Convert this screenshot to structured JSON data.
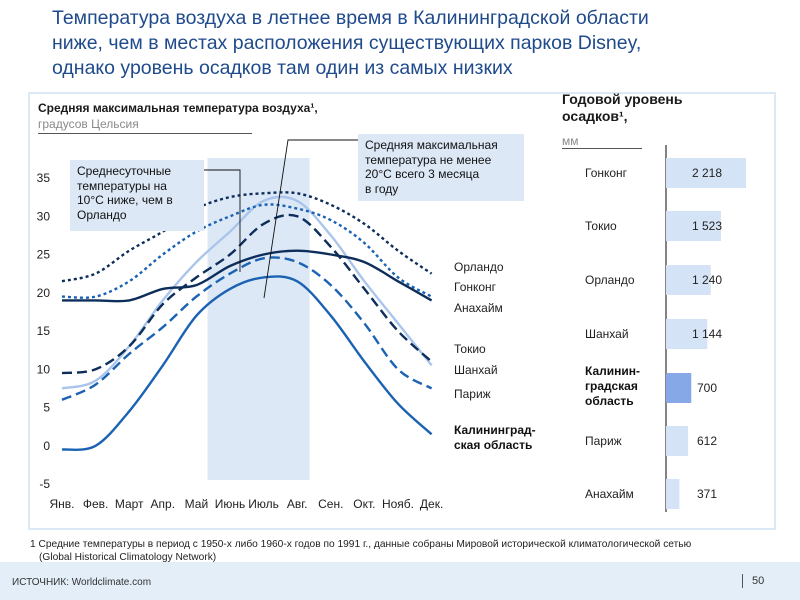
{
  "title_lines": [
    "Температура воздуха в летнее время в Калининградской области",
    "ниже, чем в местах расположения существующих парков Disney,",
    "однако уровень осадков там один из самых низких"
  ],
  "colors": {
    "title": "#1f4a8c",
    "navy": "#0d2d5a",
    "mid_blue": "#1b62b3",
    "light_blue": "#7fb0e6",
    "pale_blue": "#a9c5ec",
    "highlight_band": "#dde8f6",
    "bar_fill": "#d4e3f6",
    "bar_highlight": "#86a8e6"
  },
  "callouts": {
    "left_lines": [
      "Среднесуточные",
      "температуры на",
      "10°С ниже, чем в",
      "Орландо"
    ],
    "right_lines": [
      "Средняя максимальная",
      "температура не менее",
      "20°С всего 3 месяца",
      "в году"
    ]
  },
  "chart_data": [
    {
      "type": "line",
      "title": "Средняя максимальная температура воздуха¹,",
      "subtitle": "градусов Цельсия",
      "xlabel": "",
      "ylabel": "",
      "categories": [
        "Янв.",
        "Фев.",
        "Март",
        "Апр.",
        "Май",
        "Июнь",
        "Июль",
        "Авг.",
        "Сен.",
        "Окт.",
        "Нояб.",
        "Дек."
      ],
      "yticks": [
        "35",
        "30",
        "25",
        "20",
        "15",
        "10",
        "5",
        "0",
        "-5"
      ],
      "ytick_values": [
        35,
        30,
        25,
        20,
        15,
        10,
        5,
        0,
        -5
      ],
      "ylim": [
        -5,
        35
      ],
      "grid": false,
      "highlight_months": [
        "Июнь",
        "Июль",
        "Авг."
      ],
      "series": [
        {
          "name": "Орландо",
          "style": "dotted",
          "color": "#0d2d5a",
          "values": [
            21.5,
            22.5,
            25.5,
            28,
            31,
            32.5,
            33,
            33,
            31.5,
            29,
            25.5,
            22.5
          ]
        },
        {
          "name": "Гонконг",
          "style": "solid",
          "color": "#0d2d5a",
          "values": [
            19,
            19,
            19,
            20.5,
            21,
            23.5,
            25,
            25.5,
            25,
            24,
            21.5,
            19
          ]
        },
        {
          "name": "Анахайм",
          "style": "dotted",
          "color": "#1b62b3",
          "values": [
            19.5,
            19.5,
            21.5,
            25,
            28,
            30,
            31.5,
            31,
            29.5,
            26.5,
            22,
            19.5
          ]
        },
        {
          "name": "Токио",
          "style": "dashed",
          "color": "#0d2d5a",
          "values": [
            9.5,
            10,
            13,
            18.5,
            22,
            25,
            29,
            30,
            26,
            20.5,
            15,
            11
          ]
        },
        {
          "name": "Шанхай",
          "style": "solid",
          "color": "#a9c5ec",
          "values": [
            7.5,
            8.5,
            13,
            19,
            24,
            28,
            32,
            32,
            27.5,
            21.5,
            16,
            10.5
          ]
        },
        {
          "name": "Париж",
          "style": "dashed",
          "color": "#1b62b3",
          "values": [
            6,
            8,
            12,
            15.5,
            19.5,
            22.5,
            24.5,
            24,
            21,
            16,
            10,
            7.5
          ]
        },
        {
          "name": "Калининград-ская область",
          "label_lines": [
            "Калининград-",
            "ская область"
          ],
          "style": "solid",
          "color": "#1b62b3",
          "bold_label": true,
          "values": [
            -0.5,
            0,
            4.5,
            10.5,
            17,
            20.5,
            22,
            21.5,
            17,
            11,
            5.5,
            1.5
          ]
        }
      ]
    },
    {
      "type": "bar",
      "orientation": "horizontal",
      "title": "Годовой уровень осадков¹,",
      "subtitle": "мм",
      "categories": [
        "Гонконг",
        "Токио",
        "Орландо",
        "Шанхай",
        "Калинин-градская область",
        "Париж",
        "Анахайм"
      ],
      "category_label_lines": [
        [
          "Гонконг"
        ],
        [
          "Токио"
        ],
        [
          "Орландо"
        ],
        [
          "Шанхай"
        ],
        [
          "Калинин-",
          "градская",
          "область"
        ],
        [
          "Париж"
        ],
        [
          "Анахайм"
        ]
      ],
      "values": [
        2218,
        1523,
        1240,
        1144,
        700,
        612,
        371
      ],
      "value_labels": [
        "2 218",
        "1 523",
        "1 240",
        "1 144",
        "700",
        "612",
        "371"
      ],
      "highlight": "Калинин-градская область"
    }
  ],
  "footnote": {
    "line1": "1 Средние температуры  в период с 1950-х либо 1960-х годов по 1991 г., данные собраны Мировой исторической климатологической  сетью",
    "line2": "(Global Historical Climatology Network)"
  },
  "source": "ИСТОЧНИК:  Worldclimate.com",
  "page_number": "50"
}
